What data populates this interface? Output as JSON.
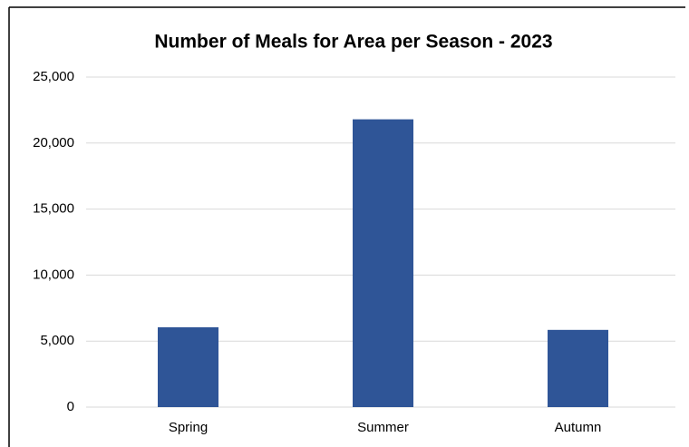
{
  "chart_data": {
    "type": "bar",
    "title": "Number of Meals for Area per Season - 2023",
    "categories": [
      "Spring",
      "Summer",
      "Autumn"
    ],
    "values": [
      6050,
      21800,
      5850
    ],
    "color": "#2f5597",
    "ylim": [
      0,
      25000
    ],
    "yticks": [
      0,
      {
        "value": 5000,
        "label": "5,000"
      },
      {
        "value": 10000,
        "label": "10,000"
      },
      {
        "value": 15000,
        "label": "15,000"
      },
      {
        "value": 20000,
        "label": "20,000"
      },
      {
        "value": 25000,
        "label": "25,000"
      }
    ],
    "grid": true
  }
}
